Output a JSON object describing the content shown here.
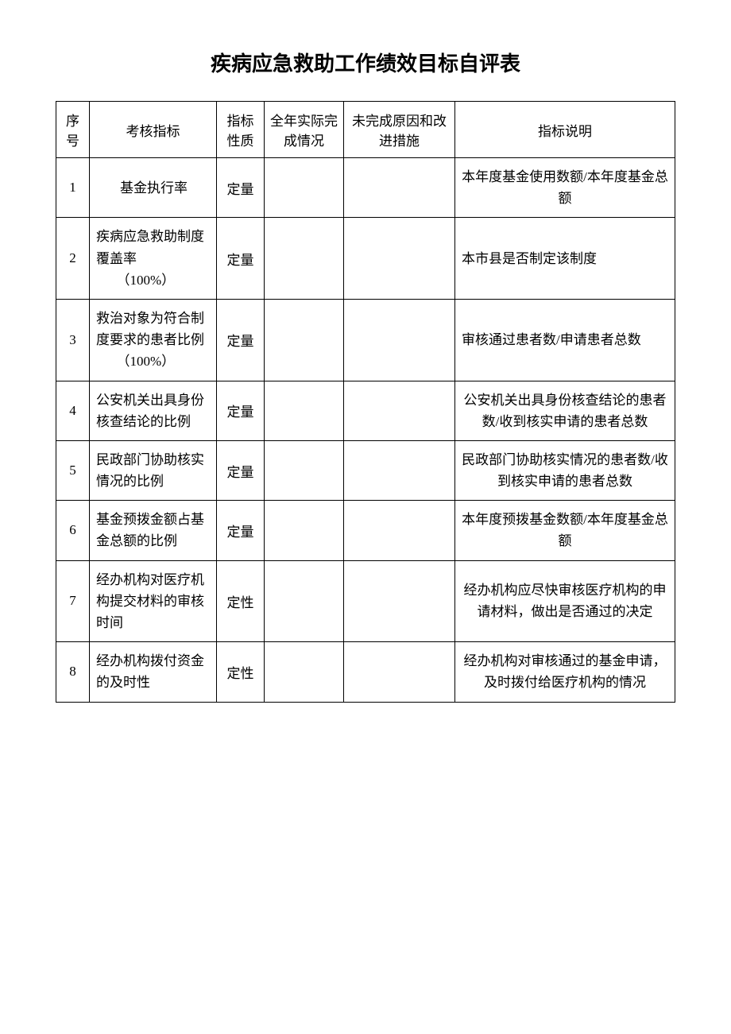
{
  "document": {
    "title": "疾病应急救助工作绩效目标自评表",
    "background_color": "#ffffff",
    "text_color": "#000000",
    "border_color": "#000000"
  },
  "table": {
    "columns": [
      {
        "key": "seq",
        "label": "序号",
        "width": 42,
        "align": "center"
      },
      {
        "key": "indicator",
        "label": "考核指标",
        "width": 160,
        "align": "center"
      },
      {
        "key": "nature",
        "label": "指标性质",
        "width": 60,
        "align": "center"
      },
      {
        "key": "actual",
        "label": "全年实际完成情况",
        "width": 100,
        "align": "center"
      },
      {
        "key": "reason",
        "label": "未完成原因和改进措施",
        "width": 140,
        "align": "center"
      },
      {
        "key": "desc",
        "label": "指标说明",
        "width": "auto",
        "align": "center"
      }
    ],
    "rows": [
      {
        "seq": "1",
        "indicator": "基金执行率",
        "indicator_align": "center",
        "nature": "定量",
        "actual": "",
        "reason": "",
        "desc": "本年度基金使用数额/本年度基金总额",
        "desc_align": "center"
      },
      {
        "seq": "2",
        "indicator": "疾病应急救助制度覆盖率",
        "indicator_suffix": "（100%）",
        "indicator_align": "left",
        "nature": "定量",
        "actual": "",
        "reason": "",
        "desc": "本市县是否制定该制度",
        "desc_align": "left"
      },
      {
        "seq": "3",
        "indicator": "救治对象为符合制度要求的患者比例",
        "indicator_suffix": "（100%）",
        "indicator_align": "left",
        "nature": "定量",
        "actual": "",
        "reason": "",
        "desc": "审核通过患者数/申请患者总数",
        "desc_align": "left"
      },
      {
        "seq": "4",
        "indicator": "公安机关出具身份核查结论的比例",
        "indicator_align": "left",
        "nature": "定量",
        "actual": "",
        "reason": "",
        "desc": "公安机关出具身份核查结论的患者数/收到核实申请的患者总数",
        "desc_align": "center"
      },
      {
        "seq": "5",
        "indicator": "民政部门协助核实情况的比例",
        "indicator_align": "left",
        "nature": "定量",
        "actual": "",
        "reason": "",
        "desc": "民政部门协助核实情况的患者数/收到核实申请的患者总数",
        "desc_align": "center"
      },
      {
        "seq": "6",
        "indicator": "基金预拨金额占基金总额的比例",
        "indicator_align": "left",
        "nature": "定量",
        "actual": "",
        "reason": "",
        "desc": "本年度预拨基金数额/本年度基金总额",
        "desc_align": "center"
      },
      {
        "seq": "7",
        "indicator": "经办机构对医疗机构提交材料的审核时间",
        "indicator_align": "left",
        "nature": "定性",
        "actual": "",
        "reason": "",
        "desc": "经办机构应尽快审核医疗机构的申请材料，做出是否通过的决定",
        "desc_align": "center"
      },
      {
        "seq": "8",
        "indicator": "经办机构拨付资金的及时性",
        "indicator_align": "left",
        "nature": "定性",
        "actual": "",
        "reason": "",
        "desc": "经办机构对审核通过的基金申请，及时拨付给医疗机构的情况",
        "desc_align": "center"
      }
    ]
  }
}
